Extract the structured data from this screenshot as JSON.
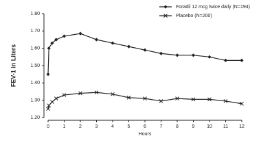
{
  "chart_data": {
    "type": "line",
    "x_label": "Hours",
    "y_label": "FEV-1 in Liters",
    "xlim": [
      0,
      12
    ],
    "xticks": [
      0,
      1,
      2,
      3,
      4,
      5,
      6,
      7,
      8,
      9,
      10,
      11,
      12
    ],
    "ylim": [
      1.2,
      1.8
    ],
    "yticks": [
      {
        "value": 1.2,
        "label": "1.20"
      },
      {
        "value": 1.3,
        "label": "1.30"
      },
      {
        "value": 1.4,
        "label": "1.40"
      },
      {
        "value": 1.5,
        "label": "1.50"
      },
      {
        "value": 1.6,
        "label": "1.60"
      },
      {
        "value": 1.7,
        "label": "1.70"
      },
      {
        "value": 1.8,
        "label": "1.80"
      }
    ],
    "grid": false,
    "legend": "top-right",
    "series": [
      {
        "name": "Foradil 12 mcg twice daily (N=194)",
        "color": "#222222",
        "marker": "diamond",
        "x": [
          0,
          0.05,
          0.25,
          0.5,
          1,
          2,
          3,
          4,
          5,
          6,
          7,
          8,
          9,
          10,
          11,
          12
        ],
        "values": [
          1.45,
          1.6,
          1.63,
          1.65,
          1.67,
          1.685,
          1.65,
          1.63,
          1.61,
          1.59,
          1.57,
          1.56,
          1.56,
          1.55,
          1.53,
          1.53
        ]
      },
      {
        "name": "Placebo (N=200)",
        "color": "#222222",
        "marker": "x",
        "x": [
          0,
          0.05,
          0.25,
          0.5,
          1,
          2,
          3,
          4,
          5,
          6,
          7,
          8,
          9,
          10,
          11,
          12
        ],
        "values": [
          1.25,
          1.27,
          1.29,
          1.31,
          1.33,
          1.34,
          1.345,
          1.335,
          1.315,
          1.31,
          1.295,
          1.31,
          1.305,
          1.305,
          1.295,
          1.28
        ]
      }
    ]
  }
}
